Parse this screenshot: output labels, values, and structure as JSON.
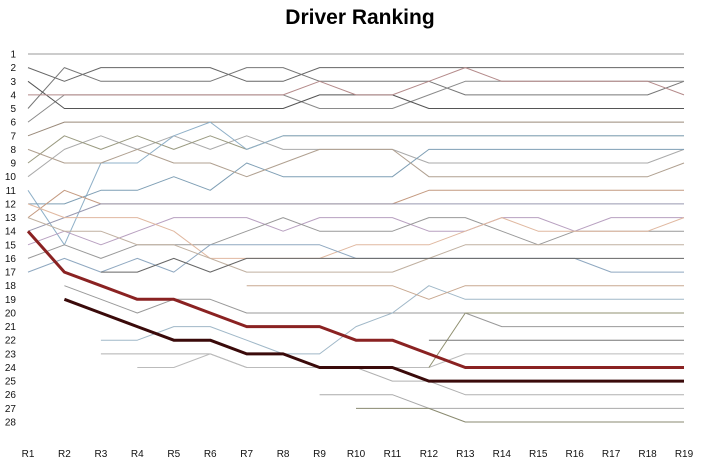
{
  "chart_data": {
    "type": "line",
    "title": "Driver Ranking",
    "xlabel": "",
    "ylabel": "",
    "categories": [
      "R1",
      "R2",
      "R3",
      "R4",
      "R5",
      "R6",
      "R7",
      "R8",
      "R9",
      "R10",
      "R11",
      "R12",
      "R13",
      "R14",
      "R15",
      "R16",
      "R17",
      "R18",
      "R19"
    ],
    "y_ticks": [
      "1",
      "2",
      "3",
      "4",
      "5",
      "6",
      "7",
      "8",
      "9",
      "10",
      "11",
      "12",
      "13",
      "14",
      "15",
      "16",
      "17",
      "18",
      "19",
      "20",
      "21",
      "22",
      "23",
      "24",
      "25",
      "26",
      "27",
      "28"
    ],
    "ylim": [
      1,
      28
    ],
    "y_inverted": true,
    "grid": false,
    "legend": "none",
    "series": [
      {
        "color": "#9a9a9a",
        "width": 1,
        "values": [
          1,
          1,
          1,
          1,
          1,
          1,
          1,
          1,
          1,
          1,
          1,
          1,
          1,
          1,
          1,
          1,
          1,
          1,
          1
        ]
      },
      {
        "color": "#666666",
        "width": 1,
        "values": [
          2,
          3,
          2,
          2,
          2,
          2,
          3,
          3,
          2,
          2,
          2,
          2,
          2,
          2,
          2,
          2,
          2,
          2,
          2
        ]
      },
      {
        "color": "#777777",
        "width": 1,
        "values": [
          5,
          2,
          3,
          3,
          3,
          3,
          2,
          2,
          3,
          3,
          3,
          3,
          4,
          4,
          4,
          4,
          4,
          4,
          3
        ]
      },
      {
        "color": "#8a8a8a",
        "width": 1,
        "values": [
          6,
          4,
          4,
          4,
          4,
          4,
          4,
          4,
          5,
          5,
          5,
          4,
          3,
          3,
          3,
          3,
          3,
          3,
          3
        ]
      },
      {
        "color": "#555555",
        "width": 1,
        "values": [
          3,
          5,
          5,
          5,
          5,
          5,
          5,
          5,
          4,
          4,
          4,
          5,
          5,
          5,
          5,
          5,
          5,
          5,
          5
        ]
      },
      {
        "color": "#b48a8a",
        "width": 1,
        "values": [
          4,
          4,
          4,
          4,
          4,
          4,
          4,
          4,
          3,
          4,
          4,
          3,
          2,
          3,
          3,
          3,
          3,
          3,
          4
        ]
      },
      {
        "color": "#9a8a7a",
        "width": 1,
        "values": [
          7,
          6,
          6,
          6,
          6,
          6,
          6,
          6,
          6,
          6,
          6,
          6,
          6,
          6,
          6,
          6,
          6,
          6,
          6
        ]
      },
      {
        "color": "#aaaaaa",
        "width": 1,
        "values": [
          10,
          8,
          7,
          8,
          7,
          8,
          7,
          8,
          8,
          8,
          8,
          9,
          9,
          9,
          9,
          9,
          9,
          9,
          8
        ]
      },
      {
        "color": "#9a9a80",
        "width": 1,
        "values": [
          9,
          7,
          8,
          7,
          8,
          7,
          8,
          7,
          7,
          7,
          7,
          7,
          7,
          7,
          7,
          7,
          7,
          7,
          7
        ]
      },
      {
        "color": "#8fb0c8",
        "width": 1,
        "values": [
          11,
          15,
          9,
          9,
          7,
          6,
          8,
          7,
          7,
          7,
          7,
          7,
          7,
          7,
          7,
          7,
          7,
          7,
          7
        ]
      },
      {
        "color": "#7f9fb5",
        "width": 1,
        "values": [
          12,
          12,
          11,
          11,
          10,
          11,
          9,
          10,
          10,
          10,
          10,
          8,
          8,
          8,
          8,
          8,
          8,
          8,
          8
        ]
      },
      {
        "color": "#b0a090",
        "width": 1,
        "values": [
          8,
          9,
          9,
          8,
          9,
          9,
          10,
          9,
          8,
          8,
          8,
          10,
          10,
          10,
          10,
          10,
          10,
          10,
          9
        ]
      },
      {
        "color": "#c49a80",
        "width": 1,
        "values": [
          13,
          11,
          12,
          12,
          12,
          12,
          12,
          12,
          12,
          12,
          12,
          11,
          11,
          11,
          11,
          11,
          11,
          11,
          11
        ]
      },
      {
        "color": "#9999b0",
        "width": 1,
        "values": [
          14,
          13,
          12,
          12,
          12,
          12,
          12,
          12,
          12,
          12,
          12,
          12,
          12,
          12,
          12,
          12,
          12,
          12,
          12
        ]
      },
      {
        "color": "#b8a0c0",
        "width": 1,
        "values": [
          15,
          14,
          15,
          14,
          13,
          13,
          13,
          14,
          13,
          13,
          13,
          14,
          14,
          13,
          13,
          14,
          13,
          13,
          13
        ]
      },
      {
        "color": "#999999",
        "width": 1,
        "values": [
          16,
          15,
          16,
          15,
          15,
          15,
          14,
          13,
          14,
          14,
          14,
          13,
          13,
          14,
          15,
          14,
          14,
          14,
          14
        ]
      },
      {
        "color": "#e0b8a0",
        "width": 1,
        "values": [
          12,
          13,
          13,
          13,
          14,
          16,
          16,
          16,
          16,
          15,
          15,
          15,
          14,
          13,
          14,
          14,
          14,
          14,
          13
        ]
      },
      {
        "color": "#8fa8c0",
        "width": 1,
        "values": [
          17,
          16,
          17,
          16,
          17,
          15,
          15,
          15,
          15,
          16,
          16,
          16,
          16,
          16,
          16,
          16,
          17,
          17,
          17
        ]
      },
      {
        "color": "#c0b0a0",
        "width": 1,
        "values": [
          13,
          14,
          14,
          15,
          15,
          16,
          17,
          17,
          17,
          17,
          17,
          16,
          15,
          15,
          15,
          15,
          15,
          15,
          15
        ]
      },
      {
        "color": "#666666",
        "width": 1,
        "values": [
          null,
          null,
          17,
          17,
          16,
          17,
          16,
          16,
          16,
          16,
          16,
          16,
          16,
          16,
          16,
          16,
          16,
          16,
          16
        ]
      },
      {
        "color": "#8a2222",
        "width": 3,
        "values": [
          14,
          17,
          18,
          19,
          19,
          20,
          21,
          21,
          21,
          22,
          22,
          23,
          24,
          24,
          24,
          24,
          24,
          24,
          24
        ]
      },
      {
        "color": "#3a0a0a",
        "width": 3,
        "values": [
          null,
          19,
          20,
          21,
          22,
          22,
          23,
          23,
          24,
          24,
          24,
          25,
          25,
          25,
          25,
          25,
          25,
          25,
          25
        ]
      },
      {
        "color": "#999999",
        "width": 1,
        "values": [
          null,
          18,
          19,
          20,
          19,
          19,
          20,
          20,
          20,
          20,
          20,
          20,
          20,
          21,
          21,
          21,
          21,
          21,
          21
        ]
      },
      {
        "color": "#a0b8c8",
        "width": 1,
        "values": [
          null,
          null,
          22,
          22,
          21,
          21,
          22,
          23,
          23,
          21,
          20,
          18,
          19,
          19,
          19,
          19,
          19,
          19,
          19
        ]
      },
      {
        "color": "#b0b0b0",
        "width": 1,
        "values": [
          null,
          null,
          23,
          23,
          23,
          23,
          24,
          24,
          24,
          24,
          25,
          25,
          26,
          26,
          26,
          26,
          26,
          26,
          26
        ]
      },
      {
        "color": "#bbbbbb",
        "width": 1,
        "values": [
          null,
          null,
          null,
          24,
          24,
          23,
          24,
          24,
          24,
          24,
          24,
          24,
          23,
          23,
          23,
          23,
          23,
          23,
          23
        ]
      },
      {
        "color": "#909070",
        "width": 1,
        "values": [
          null,
          null,
          null,
          null,
          null,
          null,
          null,
          null,
          null,
          null,
          null,
          24,
          20,
          20,
          20,
          20,
          20,
          20,
          20
        ]
      },
      {
        "color": "#c8a890",
        "width": 1,
        "values": [
          null,
          null,
          null,
          null,
          null,
          null,
          18,
          18,
          18,
          18,
          18,
          19,
          18,
          18,
          18,
          18,
          18,
          18,
          18
        ]
      },
      {
        "color": "#777777",
        "width": 1,
        "values": [
          null,
          null,
          null,
          null,
          null,
          null,
          null,
          null,
          null,
          null,
          null,
          22,
          22,
          22,
          22,
          22,
          22,
          22,
          22
        ]
      },
      {
        "color": "#aaaaaa",
        "width": 1,
        "values": [
          null,
          null,
          null,
          null,
          null,
          null,
          null,
          null,
          26,
          26,
          26,
          27,
          27,
          27,
          27,
          27,
          27,
          27,
          27
        ]
      },
      {
        "color": "#8a8a70",
        "width": 1,
        "values": [
          null,
          null,
          null,
          null,
          null,
          null,
          null,
          null,
          null,
          27,
          27,
          27,
          28,
          28,
          28,
          28,
          28,
          28,
          28
        ]
      }
    ]
  }
}
